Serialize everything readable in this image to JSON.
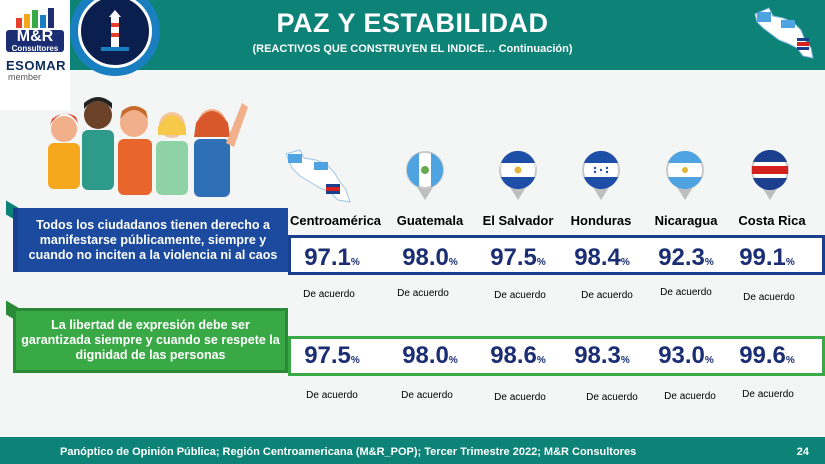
{
  "header": {
    "title": "PAZ Y ESTABILIDAD",
    "subtitle": "(REACTIVOS QUE CONSTRUYEN EL INDICE… Continuación)"
  },
  "logo": {
    "brand": "M&R",
    "brand_sub": "Consultores",
    "esomar": "ESOMAR",
    "member": "member"
  },
  "countries": [
    "Centroamérica",
    "Guatemala",
    "El Salvador",
    "Honduras",
    "Nicaragua",
    "Costa Rica"
  ],
  "rows": [
    {
      "statement": "Todos los ciudadanos tienen derecho a manifestarse públicamente, siempre y cuando no inciten a la violencia ni al caos",
      "values": [
        "97.1",
        "98.0",
        "97.5",
        "98.4",
        "92.3",
        "99.1"
      ],
      "unit": "%",
      "caption": "De acuerdo"
    },
    {
      "statement": "La libertad de expresión debe ser garantizada siempre y cuando se respete la dignidad de las personas",
      "values": [
        "97.5",
        "98.0",
        "98.6",
        "98.3",
        "93.0",
        "99.6"
      ],
      "unit": "%",
      "caption": "De acuerdo"
    }
  ],
  "footer": {
    "text": "Panóptico de Opinión Pública; Región Centroamericana (M&R_POP); Tercer Trimestre 2022; M&R Consultores",
    "page": "24"
  },
  "colors": {
    "teal": "#0d8377",
    "navy": "#1b3f8f",
    "green": "#39a946",
    "value": "#1b2e73"
  }
}
